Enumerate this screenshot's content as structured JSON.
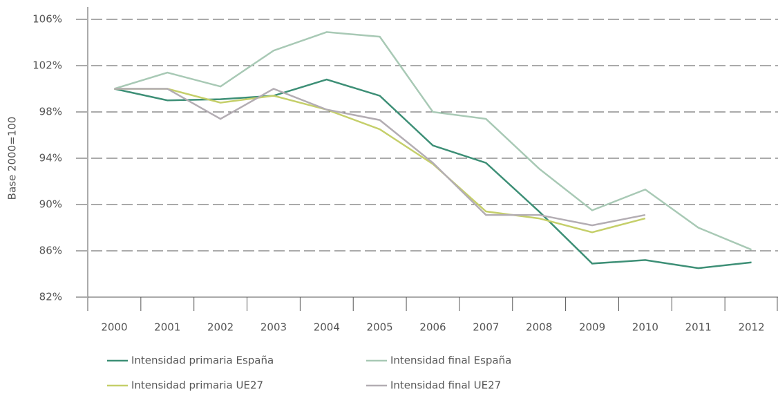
{
  "chart_data": {
    "type": "line",
    "y_axis_label": "Base 2000=100",
    "categories": [
      "2000",
      "2001",
      "2002",
      "2003",
      "2004",
      "2005",
      "2006",
      "2007",
      "2008",
      "2009",
      "2010",
      "2011",
      "2012"
    ],
    "series": [
      {
        "name": "Intensidad primaria España",
        "color": "#3d8f76",
        "values": [
          100,
          99.0,
          99.1,
          99.4,
          100.8,
          99.4,
          95.1,
          93.6,
          89.4,
          84.9,
          85.2,
          84.5,
          85.0
        ]
      },
      {
        "name": "Intensidad final España",
        "color": "#a8c9b5",
        "values": [
          100,
          101.4,
          100.2,
          103.3,
          104.9,
          104.5,
          98.0,
          97.4,
          93.1,
          89.5,
          91.3,
          88.0,
          86.1
        ]
      },
      {
        "name": "Intensidad primaria UE27",
        "color": "#c5cf6a",
        "values": [
          100,
          100,
          98.8,
          99.4,
          98.2,
          96.5,
          93.5,
          89.4,
          88.8,
          87.6,
          88.8,
          null,
          null
        ]
      },
      {
        "name": "Intensidad final UE27",
        "color": "#b3adb3",
        "values": [
          100,
          100,
          97.4,
          100,
          98.2,
          97.3,
          93.6,
          89.1,
          89.1,
          88.2,
          89.1,
          null,
          null
        ]
      }
    ],
    "ylim": [
      82,
      106
    ],
    "yticks": [
      {
        "value": 82,
        "label": "82%"
      },
      {
        "value": 86,
        "label": "86%"
      },
      {
        "value": 90,
        "label": "90%"
      },
      {
        "value": 94,
        "label": "94%"
      },
      {
        "value": 98,
        "label": "98%"
      },
      {
        "value": 102,
        "label": "102%"
      },
      {
        "value": 106,
        "label": "106%"
      }
    ],
    "grid": true
  }
}
